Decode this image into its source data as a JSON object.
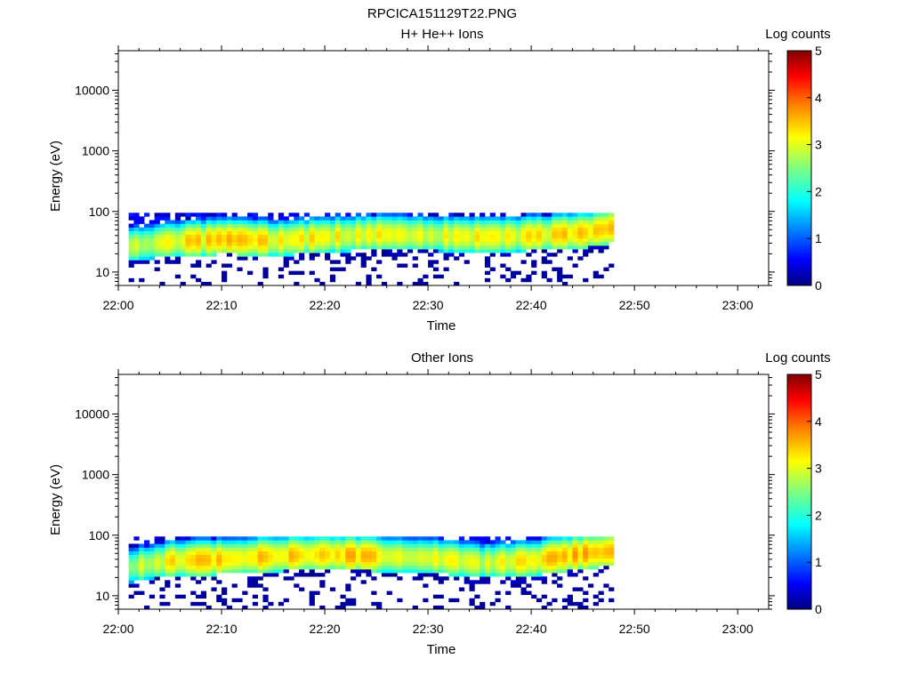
{
  "figure": {
    "title": "RPCICA151129T22.PNG"
  },
  "colors": {
    "colormap": [
      "#00007f",
      "#0000ff",
      "#007fff",
      "#00ffff",
      "#7fff7f",
      "#ffff00",
      "#ff7f00",
      "#ff0000",
      "#7f0000"
    ],
    "axes": "#000000",
    "background": "#ffffff"
  },
  "chart_data": [
    {
      "type": "heatmap",
      "title": "H+ He++ Ions",
      "xlabel": "Time",
      "ylabel": "Energy (eV)",
      "x_ticks": [
        "22:00",
        "22:10",
        "22:20",
        "22:30",
        "22:40",
        "22:50",
        "23:00"
      ],
      "y_ticks": [
        "10",
        "100",
        "1000",
        "10000"
      ],
      "y_scale": "log",
      "ylim": [
        6,
        45000
      ],
      "xlim": [
        "22:00",
        "23:03"
      ],
      "colorbar": {
        "label": "Log counts",
        "ticks": [
          "0",
          "1",
          "2",
          "3",
          "4",
          "5"
        ],
        "range": [
          0,
          5
        ]
      },
      "data_extent": {
        "time_start": "22:01",
        "time_end": "22:48",
        "energy_max": 95,
        "energy_min": 6
      },
      "band_peak": [
        {
          "time": "22:01",
          "energy": 27,
          "log_counts": 2.7
        },
        {
          "time": "22:05",
          "energy": 32,
          "log_counts": 3.1
        },
        {
          "time": "22:10",
          "energy": 35,
          "log_counts": 3.3
        },
        {
          "time": "22:15",
          "energy": 33,
          "log_counts": 3.2
        },
        {
          "time": "22:20",
          "energy": 38,
          "log_counts": 3.1
        },
        {
          "time": "22:25",
          "energy": 42,
          "log_counts": 3.0
        },
        {
          "time": "22:30",
          "energy": 40,
          "log_counts": 3.0
        },
        {
          "time": "22:35",
          "energy": 38,
          "log_counts": 3.1
        },
        {
          "time": "22:40",
          "energy": 40,
          "log_counts": 3.1
        },
        {
          "time": "22:45",
          "energy": 45,
          "log_counts": 3.3
        },
        {
          "time": "22:48",
          "energy": 55,
          "log_counts": 3.5
        }
      ]
    },
    {
      "type": "heatmap",
      "title": "Other Ions",
      "xlabel": "Time",
      "ylabel": "Energy (eV)",
      "x_ticks": [
        "22:00",
        "22:10",
        "22:20",
        "22:30",
        "22:40",
        "22:50",
        "23:00"
      ],
      "y_ticks": [
        "10",
        "100",
        "1000",
        "10000"
      ],
      "y_scale": "log",
      "ylim": [
        6,
        45000
      ],
      "xlim": [
        "22:00",
        "23:03"
      ],
      "colorbar": {
        "label": "Log counts",
        "ticks": [
          "0",
          "1",
          "2",
          "3",
          "4",
          "5"
        ],
        "range": [
          0,
          5
        ]
      },
      "data_extent": {
        "time_start": "22:01",
        "time_end": "22:48",
        "energy_max": 95,
        "energy_min": 6
      },
      "band_peak": [
        {
          "time": "22:01",
          "energy": 30,
          "log_counts": 2.6
        },
        {
          "time": "22:05",
          "energy": 38,
          "log_counts": 3.2
        },
        {
          "time": "22:10",
          "energy": 40,
          "log_counts": 3.3
        },
        {
          "time": "22:15",
          "energy": 45,
          "log_counts": 3.3
        },
        {
          "time": "22:20",
          "energy": 48,
          "log_counts": 3.4
        },
        {
          "time": "22:25",
          "energy": 45,
          "log_counts": 3.2
        },
        {
          "time": "22:30",
          "energy": 42,
          "log_counts": 3.1
        },
        {
          "time": "22:35",
          "energy": 35,
          "log_counts": 2.8
        },
        {
          "time": "22:40",
          "energy": 38,
          "log_counts": 3.2
        },
        {
          "time": "22:45",
          "energy": 50,
          "log_counts": 3.5
        },
        {
          "time": "22:48",
          "energy": 55,
          "log_counts": 3.6
        }
      ]
    }
  ]
}
